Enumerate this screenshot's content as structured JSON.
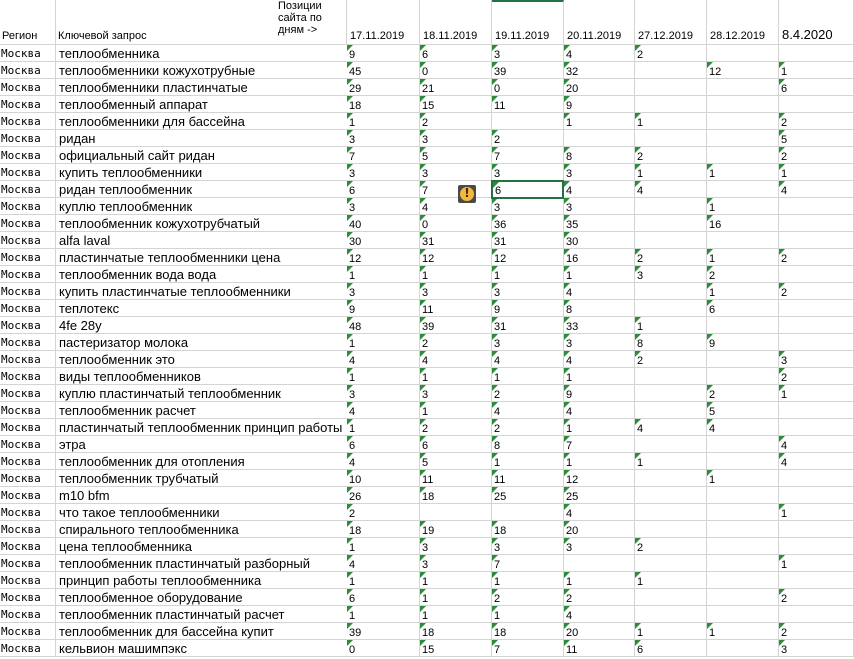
{
  "headers": {
    "region": "Регион",
    "keyword": "Ключевой запрос",
    "positions": "Позиции сайта по дням ->",
    "dates": [
      "17.11.2019",
      "18.11.2019",
      "19.11.2019",
      "20.11.2019",
      "27.12.2019",
      "28.12.2019",
      "8.4.2020"
    ]
  },
  "active_cell": {
    "row": 8,
    "col": 2
  },
  "rows": [
    {
      "region": "Москва",
      "keyword": "теплообменника",
      "values": [
        "9",
        "6",
        "3",
        "4",
        "2",
        "",
        ""
      ]
    },
    {
      "region": "Москва",
      "keyword": "теплообменники кожухотрубные",
      "values": [
        "45",
        "0",
        "39",
        "32",
        "",
        "12",
        "1"
      ]
    },
    {
      "region": "Москва",
      "keyword": "теплообменники пластинчатые",
      "values": [
        "29",
        "21",
        "0",
        "20",
        "",
        "",
        "6"
      ]
    },
    {
      "region": "Москва",
      "keyword": "теплообменный аппарат",
      "values": [
        "18",
        "15",
        "11",
        "9",
        "",
        "",
        ""
      ]
    },
    {
      "region": "Москва",
      "keyword": "теплообменники для бассейна",
      "values": [
        "1",
        "2",
        "",
        "1",
        "1",
        "",
        "2"
      ]
    },
    {
      "region": "Москва",
      "keyword": "ридан",
      "values": [
        "3",
        "3",
        "2",
        "",
        "",
        "",
        "5"
      ]
    },
    {
      "region": "Москва",
      "keyword": "официальный сайт ридан",
      "values": [
        "7",
        "5",
        "7",
        "8",
        "2",
        "",
        "2"
      ]
    },
    {
      "region": "Москва",
      "keyword": "купить теплообменники",
      "values": [
        "3",
        "3",
        "3",
        "3",
        "1",
        "1",
        "1"
      ]
    },
    {
      "region": "Москва",
      "keyword": "ридан теплообменник",
      "values": [
        "6",
        "7",
        "6",
        "4",
        "4",
        "",
        "4"
      ]
    },
    {
      "region": "Москва",
      "keyword": "куплю теплообменник",
      "values": [
        "3",
        "4",
        "3",
        "3",
        "",
        "1",
        ""
      ]
    },
    {
      "region": "Москва",
      "keyword": "теплообменник кожухотрубчатый",
      "values": [
        "40",
        "0",
        "36",
        "35",
        "",
        "16",
        ""
      ]
    },
    {
      "region": "Москва",
      "keyword": "alfa laval",
      "values": [
        "30",
        "31",
        "31",
        "30",
        "",
        "",
        ""
      ]
    },
    {
      "region": "Москва",
      "keyword": "пластинчатые теплообменники цена",
      "values": [
        "12",
        "12",
        "12",
        "16",
        "2",
        "1",
        "2"
      ]
    },
    {
      "region": "Москва",
      "keyword": "теплообменник вода вода",
      "values": [
        "1",
        "1",
        "1",
        "1",
        "3",
        "2",
        ""
      ]
    },
    {
      "region": "Москва",
      "keyword": "купить пластинчатые теплообменники",
      "values": [
        "3",
        "3",
        "3",
        "4",
        "",
        "1",
        "2"
      ]
    },
    {
      "region": "Москва",
      "keyword": "теплотекс",
      "values": [
        "9",
        "11",
        "9",
        "8",
        "",
        "6",
        ""
      ]
    },
    {
      "region": "Москва",
      "keyword": "4fe 28y",
      "values": [
        "48",
        "39",
        "31",
        "33",
        "1",
        "",
        ""
      ]
    },
    {
      "region": "Москва",
      "keyword": "пастеризатор молока",
      "values": [
        "1",
        "2",
        "3",
        "3",
        "8",
        "9",
        ""
      ]
    },
    {
      "region": "Москва",
      "keyword": "теплообменник это",
      "values": [
        "4",
        "4",
        "4",
        "4",
        "2",
        "",
        "3"
      ]
    },
    {
      "region": "Москва",
      "keyword": "виды теплообменников",
      "values": [
        "1",
        "1",
        "1",
        "1",
        "",
        "",
        "2"
      ]
    },
    {
      "region": "Москва",
      "keyword": "куплю пластинчатый теплообменник",
      "values": [
        "3",
        "3",
        "2",
        "9",
        "",
        "2",
        "1"
      ]
    },
    {
      "region": "Москва",
      "keyword": "теплообменник расчет",
      "values": [
        "4",
        "1",
        "4",
        "4",
        "",
        "5",
        ""
      ]
    },
    {
      "region": "Москва",
      "keyword": "пластинчатый теплообменник принцип работы",
      "values": [
        "1",
        "2",
        "2",
        "1",
        "4",
        "4",
        ""
      ]
    },
    {
      "region": "Москва",
      "keyword": "этра",
      "values": [
        "6",
        "6",
        "8",
        "7",
        "",
        "",
        "4"
      ]
    },
    {
      "region": "Москва",
      "keyword": "теплообменник для отопления",
      "values": [
        "4",
        "5",
        "1",
        "1",
        "1",
        "",
        "4"
      ]
    },
    {
      "region": "Москва",
      "keyword": "теплообменник трубчатый",
      "values": [
        "10",
        "11",
        "11",
        "12",
        "",
        "1",
        ""
      ]
    },
    {
      "region": "Москва",
      "keyword": "m10 bfm",
      "values": [
        "26",
        "18",
        "25",
        "25",
        "",
        "",
        ""
      ]
    },
    {
      "region": "Москва",
      "keyword": "что такое теплообменники",
      "values": [
        "2",
        "",
        "",
        "4",
        "",
        "",
        "1"
      ]
    },
    {
      "region": "Москва",
      "keyword": "спирального теплообменника",
      "values": [
        "18",
        "19",
        "18",
        "20",
        "",
        "",
        ""
      ]
    },
    {
      "region": "Москва",
      "keyword": "цена теплообменника",
      "values": [
        "1",
        "3",
        "3",
        "3",
        "2",
        "",
        ""
      ]
    },
    {
      "region": "Москва",
      "keyword": "теплообменник пластинчатый разборный",
      "values": [
        "4",
        "3",
        "7",
        "",
        "",
        "",
        "1"
      ]
    },
    {
      "region": "Москва",
      "keyword": "принцип работы теплообменника",
      "values": [
        "1",
        "1",
        "1",
        "1",
        "1",
        "",
        ""
      ]
    },
    {
      "region": "Москва",
      "keyword": "теплообменное оборудование",
      "values": [
        "6",
        "1",
        "2",
        "2",
        "",
        "",
        "2"
      ]
    },
    {
      "region": "Москва",
      "keyword": "теплообменник пластинчатый расчет",
      "values": [
        "1",
        "1",
        "1",
        "4",
        "",
        "",
        ""
      ]
    },
    {
      "region": "Москва",
      "keyword": "теплообменник для бассейна купит",
      "values": [
        "39",
        "18",
        "18",
        "20",
        "1",
        "1",
        "2"
      ]
    },
    {
      "region": "Москва",
      "keyword": "кельвион машимпэкс",
      "values": [
        "0",
        "15",
        "7",
        "11",
        "6",
        "",
        "3"
      ]
    }
  ],
  "colors": {
    "grid": "#d4d4d4",
    "indicator": "#2e8b3c",
    "selection": "#217346",
    "warning": "#f4b93c"
  },
  "icons": {
    "warning": "warning-icon"
  }
}
